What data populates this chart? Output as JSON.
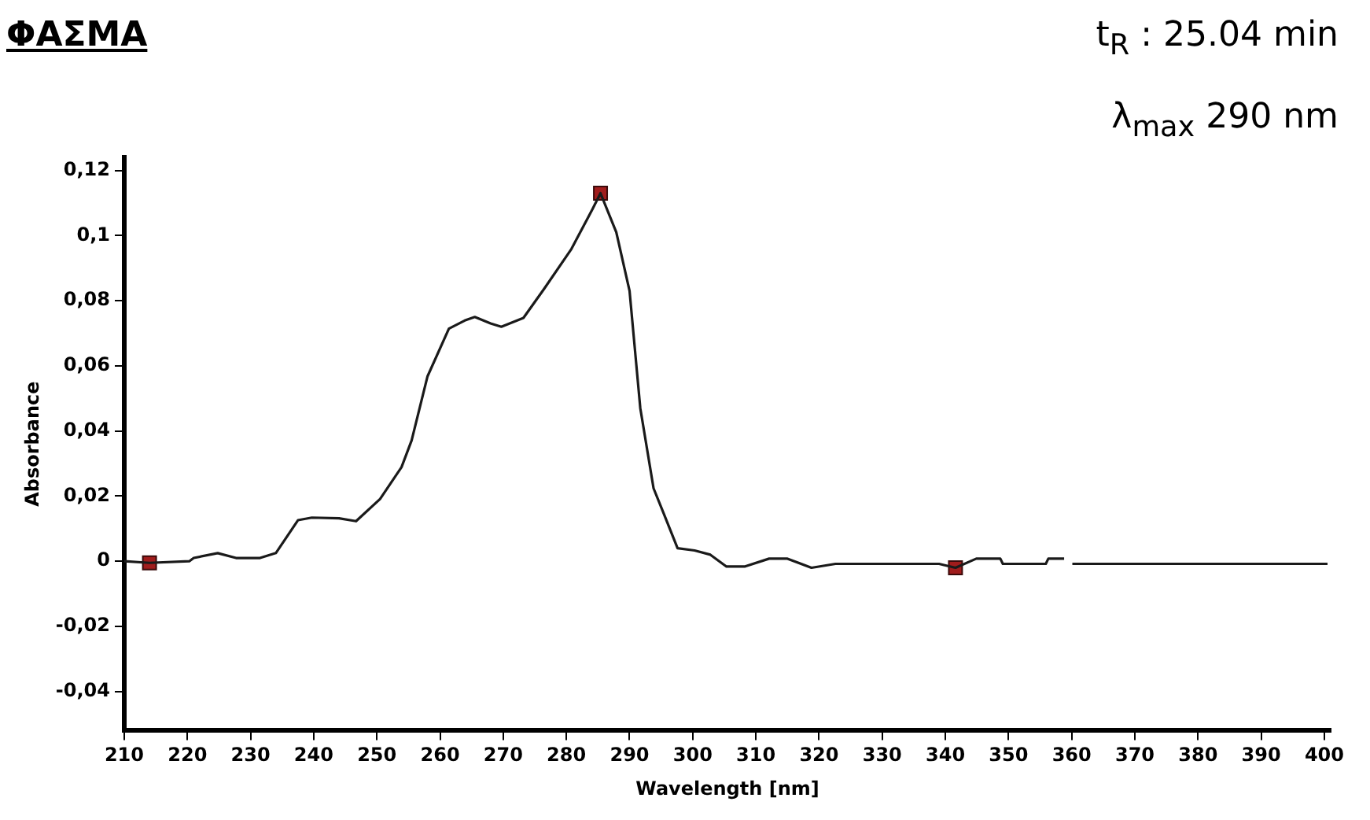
{
  "chart_data": {
    "type": "line",
    "title": "ΦΑΣΜΑ",
    "xlabel": "Wavelength [nm]",
    "ylabel": "Absorbance",
    "annotations": [
      "t$_{R}$ : 25.04 min",
      "λ$_{max}$ 290 nm"
    ],
    "xlim": [
      210,
      401
    ],
    "xticks": [
      210,
      220,
      230,
      240,
      250,
      260,
      270,
      280,
      290,
      300,
      310,
      320,
      330,
      340,
      350,
      360,
      370,
      380,
      390,
      400
    ],
    "ylim": [
      -0.052,
      0.124
    ],
    "yticks": [
      {
        "value": 0.12,
        "label": "0,12"
      },
      {
        "value": 0.1,
        "label": "0,1"
      },
      {
        "value": 0.08,
        "label": "0,08"
      },
      {
        "value": 0.06,
        "label": "0,06"
      },
      {
        "value": 0.04,
        "label": "0,04"
      },
      {
        "value": 0.02,
        "label": "0,02"
      },
      {
        "value": 0,
        "label": "0"
      },
      {
        "value": -0.02,
        "label": "-0,02"
      },
      {
        "value": -0.04,
        "label": "-0,04"
      }
    ],
    "grid": false,
    "legend": false,
    "series": [
      {
        "type": "line",
        "color": "#1a1a1a",
        "marker": "none",
        "x": [
          210,
          214,
          220.3,
          221,
          224.8,
          227.7,
          231.5,
          234,
          237.5,
          239.7,
          244,
          246.7,
          250.5,
          253.9,
          255.5,
          258,
          261.4,
          263.9,
          265.5,
          268,
          269.7,
          273.2,
          276.5,
          280.8,
          284.1,
          285.4,
          287.9,
          290,
          291.7,
          293.8,
          295.5,
          297.6,
          300.3,
          302.8,
          305.3,
          308.3,
          312.1,
          315,
          318.8,
          322.6,
          339,
          341.6,
          344.9,
          348.7,
          349.1,
          355.9,
          356.3,
          358.8,
          359.5,
          360.1,
          400.5
        ],
        "values": [
          0,
          -0.0005,
          0,
          0.001,
          0.0025,
          0.001,
          0.001,
          0.0025,
          0.0126,
          0.0134,
          0.0132,
          0.0123,
          0.0191,
          0.0289,
          0.0371,
          0.0567,
          0.0714,
          0.0739,
          0.075,
          0.073,
          0.072,
          0.0747,
          0.0837,
          0.0959,
          0.108,
          0.113,
          0.101,
          0.083,
          0.047,
          0.0224,
          0.0142,
          0.004,
          0.0033,
          0.002,
          -0.0016,
          -0.0016,
          0.0008,
          0.0008,
          -0.002,
          -0.0008,
          -0.0008,
          -0.002,
          0.0008,
          0.0008,
          -0.0008,
          -0.0008,
          0.0008,
          0.0008,
          null,
          -0.0008,
          -0.0008
        ]
      },
      {
        "type": "scatter",
        "color": "#a01c1c",
        "marker": "square",
        "x": [
          214,
          285.4,
          341.6
        ],
        "values": [
          -0.0005,
          0.113,
          -0.002
        ]
      }
    ]
  }
}
